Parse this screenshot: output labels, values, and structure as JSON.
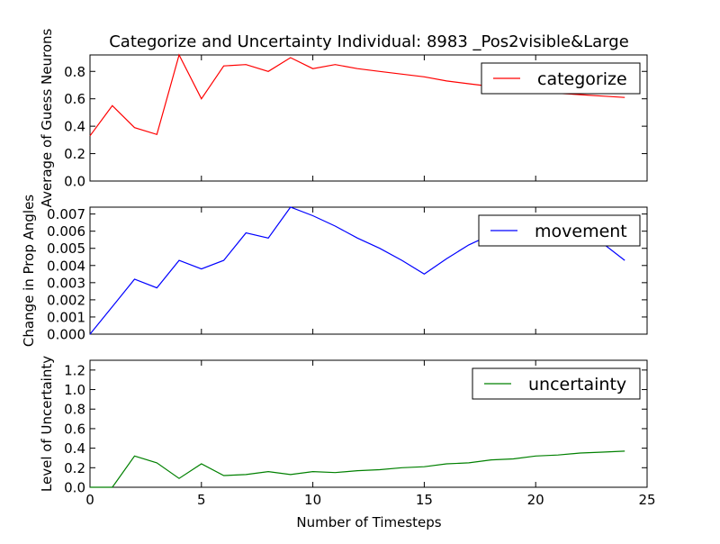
{
  "figure": {
    "title": "Categorize and Uncertainty Individual: 8983 _Pos2visible&Large",
    "xlabel": "Number of Timesteps"
  },
  "chart_data": [
    {
      "type": "line",
      "ylabel": "Average of Guess Neurons",
      "xlim": [
        0,
        25
      ],
      "ylim": [
        0,
        0.92
      ],
      "yticks": [
        "0.0",
        "0.2",
        "0.4",
        "0.6",
        "0.8"
      ],
      "ytick_values": [
        0,
        0.2,
        0.4,
        0.6,
        0.8
      ],
      "legend_position": "upper-right",
      "series": [
        {
          "name": "categorize",
          "color": "#ff0000",
          "x": [
            0,
            1,
            2,
            3,
            4,
            5,
            6,
            7,
            8,
            9,
            10,
            11,
            12,
            13,
            14,
            15,
            16,
            17,
            18,
            19,
            20,
            21,
            22,
            23,
            24
          ],
          "y": [
            0.33,
            0.55,
            0.39,
            0.34,
            0.92,
            0.6,
            0.84,
            0.85,
            0.8,
            0.9,
            0.82,
            0.85,
            0.82,
            0.8,
            0.78,
            0.76,
            0.73,
            0.71,
            0.69,
            0.67,
            0.66,
            0.64,
            0.63,
            0.62,
            0.61
          ]
        }
      ]
    },
    {
      "type": "line",
      "ylabel": "Change in Prop Angles",
      "xlim": [
        0,
        25
      ],
      "ylim": [
        0,
        0.0074
      ],
      "yticks": [
        "0.000",
        "0.001",
        "0.002",
        "0.003",
        "0.004",
        "0.005",
        "0.006",
        "0.007"
      ],
      "ytick_values": [
        0,
        0.001,
        0.002,
        0.003,
        0.004,
        0.005,
        0.006,
        0.007
      ],
      "legend_position": "upper-right",
      "series": [
        {
          "name": "movement",
          "color": "#0000ff",
          "x": [
            0,
            1,
            2,
            3,
            4,
            5,
            6,
            7,
            8,
            9,
            10,
            11,
            12,
            13,
            14,
            15,
            16,
            17,
            18,
            19,
            20,
            21,
            22,
            23,
            24
          ],
          "y": [
            0.0,
            0.0016,
            0.0032,
            0.0027,
            0.0043,
            0.0038,
            0.0043,
            0.0059,
            0.0056,
            0.0074,
            0.0069,
            0.0063,
            0.0056,
            0.005,
            0.0043,
            0.0035,
            0.0044,
            0.0052,
            0.0058,
            0.006,
            0.0062,
            0.0061,
            0.0058,
            0.0053,
            0.0043
          ]
        }
      ]
    },
    {
      "type": "line",
      "ylabel": "Level of Uncertainty",
      "xlim": [
        0,
        25
      ],
      "ylim": [
        0,
        1.3
      ],
      "yticks": [
        "0.0",
        "0.2",
        "0.4",
        "0.6",
        "0.8",
        "1.0",
        "1.2"
      ],
      "ytick_values": [
        0,
        0.2,
        0.4,
        0.6,
        0.8,
        1.0,
        1.2
      ],
      "xticks": [
        "0",
        "5",
        "10",
        "15",
        "20",
        "25"
      ],
      "xtick_values": [
        0,
        5,
        10,
        15,
        20,
        25
      ],
      "legend_position": "upper-right",
      "series": [
        {
          "name": "uncertainty",
          "color": "#008000",
          "x": [
            0,
            1,
            2,
            3,
            4,
            5,
            6,
            7,
            8,
            9,
            10,
            11,
            12,
            13,
            14,
            15,
            16,
            17,
            18,
            19,
            20,
            21,
            22,
            23,
            24
          ],
          "y": [
            0.0,
            0.0,
            0.32,
            0.25,
            0.09,
            0.24,
            0.12,
            0.13,
            0.16,
            0.13,
            0.16,
            0.15,
            0.17,
            0.18,
            0.2,
            0.21,
            0.24,
            0.25,
            0.28,
            0.29,
            0.32,
            0.33,
            0.35,
            0.36,
            0.37
          ]
        }
      ]
    }
  ]
}
